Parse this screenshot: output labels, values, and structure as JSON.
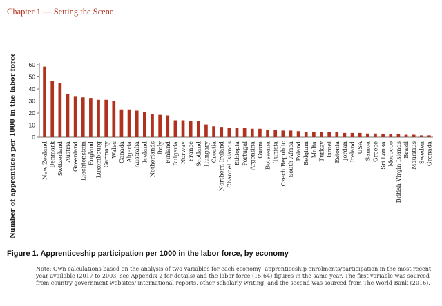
{
  "header": {
    "chapter": "Chapter 1 — Setting the Scene"
  },
  "chart_data": {
    "type": "bar",
    "title": "Apprenticeship participation per 1000 in the labor force, by economy",
    "xlabel": "",
    "ylabel": "Number of apprentices per 1000 in the labor force",
    "ylim": [
      0,
      60
    ],
    "yticks": [
      0,
      10,
      20,
      30,
      40,
      50,
      60
    ],
    "grid": false,
    "bar_color": "#b0321e",
    "categories": [
      "New Zealand",
      "Denmark",
      "Switzerland",
      "Austria",
      "Greenland",
      "Liechtenstein",
      "England",
      "Luxembourg",
      "Germany",
      "Wales",
      "Canada",
      "Algeria",
      "Australia",
      "Iceland",
      "Netherlands",
      "Italy",
      "Finland",
      "Bulgaria",
      "Norway",
      "France",
      "Scotland",
      "Hungary",
      "Croatia",
      "Northern Ireland",
      "Channel Islands",
      "Ethiopia",
      "Portugal",
      "Argentina",
      "Guam",
      "Botswana",
      "Tunisia",
      "Czech Republic",
      "South Africa",
      "Poland",
      "Belgium",
      "Malta",
      "Turkey",
      "Israel",
      "Estonia",
      "Jordan",
      "Ireland",
      "USA",
      "Samoa",
      "Greece",
      "Sri Lanka",
      "Morocco",
      "British Virgin Islands",
      "Brazil",
      "Mauritius",
      "Sweden",
      "Grenada"
    ],
    "values": [
      58.5,
      46.5,
      45,
      36,
      33.5,
      33,
      32.5,
      31,
      31,
      30,
      23,
      23,
      22,
      21,
      19,
      18.5,
      18,
      14,
      14,
      13.5,
      13.5,
      10.5,
      9,
      8.5,
      8,
      7.5,
      7.5,
      7,
      7,
      6,
      6,
      5.5,
      5.5,
      5,
      4.5,
      4.5,
      4,
      4,
      4,
      3.5,
      3.5,
      3.5,
      3,
      3,
      2.5,
      2.5,
      2.5,
      2,
      2,
      1.5,
      1.5
    ]
  },
  "caption": {
    "figure": "Figure 1. Apprenticeship participation per 1000 in the labor force, by economy"
  },
  "note": {
    "text": "Note: Own calculations based on the analysis of two variables for each economy: apprenticeship enrolments/participation in the most recent year available (2017 to 2003; see Appendix 2 for details) and the labor force (15-64) figures in the same year. The first variable was sourced from country government websites/ international reports, other scholarly writing, and the second was sourced from The World Bank (2016)."
  }
}
